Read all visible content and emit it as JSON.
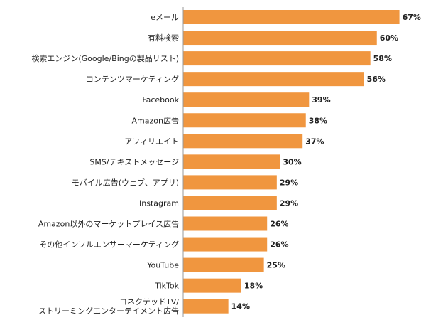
{
  "chart_data": {
    "type": "bar",
    "orientation": "horizontal",
    "categories": [
      "eメール",
      "有料検索",
      "検索エンジン(Google/Bingの製品リスト)",
      "コンテンツマーケティング",
      "Facebook",
      "Amazon広告",
      "アフィリエイト",
      "SMS/テキストメッセージ",
      "モバイル広告(ウェブ、アプリ)",
      "Instagram",
      "Amazon以外のマーケットプレイス広告",
      "その他インフルエンサーマーケティング",
      "YouTube",
      "TikTok",
      "コネクテッドTV/\nストリーミングエンターテイメント広告"
    ],
    "values": [
      67,
      60,
      58,
      56,
      39,
      38,
      37,
      30,
      29,
      29,
      26,
      26,
      25,
      18,
      14
    ],
    "value_labels": [
      "67%",
      "60%",
      "58%",
      "56%",
      "39%",
      "38%",
      "37%",
      "30%",
      "29%",
      "29%",
      "26%",
      "26%",
      "25%",
      "18%",
      "14%"
    ],
    "title": "",
    "xlabel": "",
    "ylabel": "",
    "xlim": [
      0,
      70
    ],
    "bar_color": "#f0963f",
    "grid": false,
    "legend": "none"
  }
}
